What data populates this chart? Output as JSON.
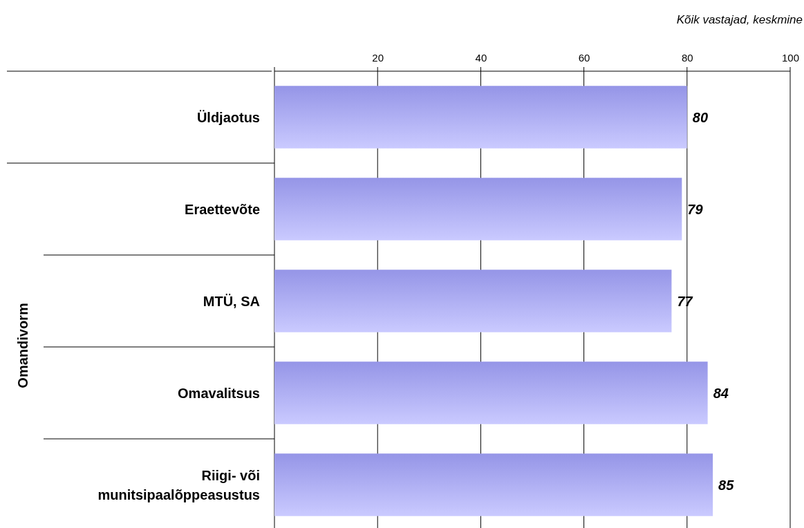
{
  "chart_data": {
    "type": "bar",
    "orientation": "horizontal",
    "title": "Kõik vastajad, keskmine",
    "ylabel": "Omandivorm",
    "categories": [
      "Üldjaotus",
      "Eraettevõte",
      "MTÜ, SA",
      "Omavalitsus",
      "Riigi- või munitsipaalõppeasustus"
    ],
    "values": [
      80,
      79,
      77,
      84,
      85
    ],
    "color": "#a3a3fd",
    "xlim": [
      0,
      100
    ],
    "xticks": [
      20,
      40,
      60,
      80,
      100
    ],
    "grid": "x",
    "data_labels": true
  }
}
